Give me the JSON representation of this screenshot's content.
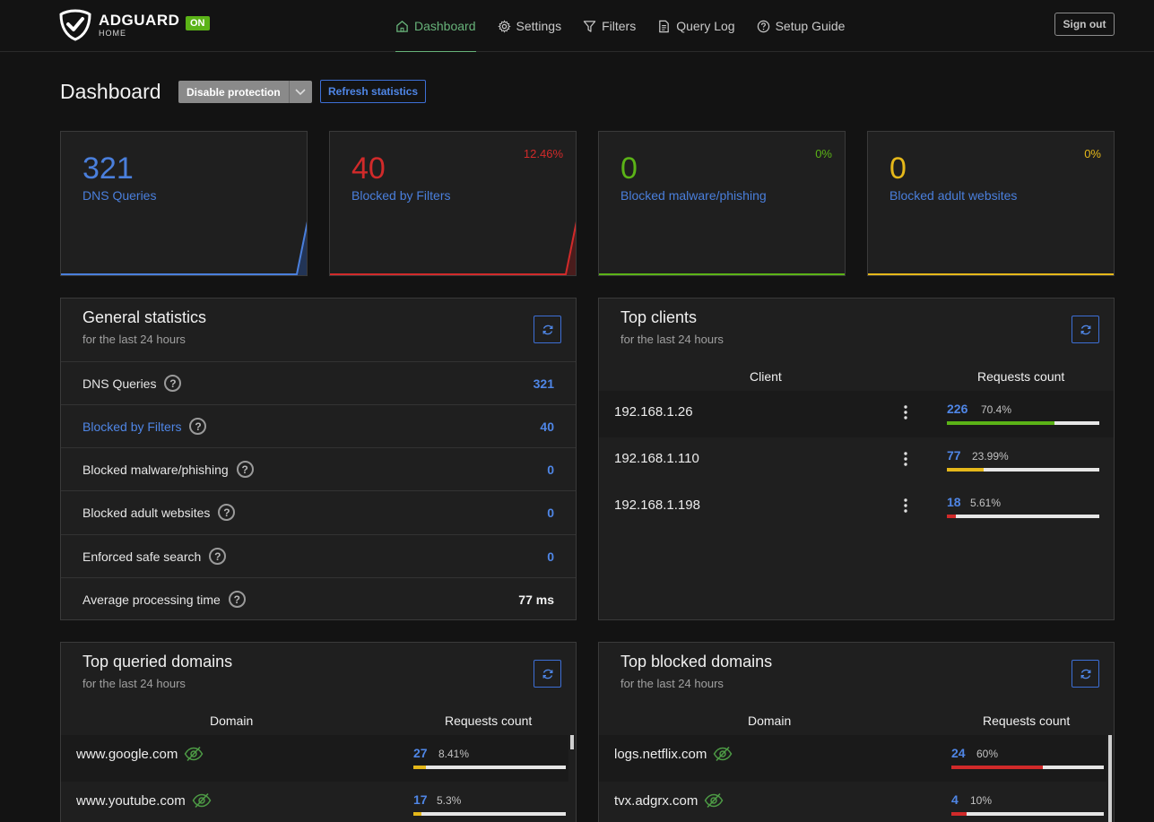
{
  "header": {
    "brand": "ADGUARD",
    "brand_sub": "HOME",
    "status_badge": "ON",
    "nav": [
      {
        "label": "Dashboard",
        "icon": "home-icon",
        "active": true
      },
      {
        "label": "Settings",
        "icon": "gear-icon",
        "active": false
      },
      {
        "label": "Filters",
        "icon": "filter-icon",
        "active": false
      },
      {
        "label": "Query Log",
        "icon": "document-icon",
        "active": false
      },
      {
        "label": "Setup Guide",
        "icon": "help-circle-icon",
        "active": false
      }
    ],
    "signout_label": "Sign out"
  },
  "page": {
    "title": "Dashboard",
    "disable_label": "Disable protection",
    "refresh_label": "Refresh statistics"
  },
  "stat_cards": [
    {
      "value": "321",
      "label": "DNS Queries",
      "percent": "",
      "color": "#4a7fdc"
    },
    {
      "value": "40",
      "label": "Blocked by Filters",
      "percent": "12.46%",
      "color": "#d12a2a"
    },
    {
      "value": "0",
      "label": "Blocked malware/phishing",
      "percent": "0%",
      "color": "#5bb317"
    },
    {
      "value": "0",
      "label": "Blocked adult websites",
      "percent": "0%",
      "color": "#e5b81a"
    }
  ],
  "general_stats": {
    "title": "General statistics",
    "subtitle": "for the last 24 hours",
    "rows": [
      {
        "label": "DNS Queries",
        "value": "321"
      },
      {
        "label": "Blocked by Filters",
        "value": "40"
      },
      {
        "label": "Blocked malware/phishing",
        "value": "0"
      },
      {
        "label": "Blocked adult websites",
        "value": "0"
      },
      {
        "label": "Enforced safe search",
        "value": "0"
      },
      {
        "label": "Average processing time",
        "value": "77 ms"
      }
    ]
  },
  "top_clients": {
    "title": "Top clients",
    "subtitle": "for the last 24 hours",
    "col_client": "Client",
    "col_count": "Requests count",
    "rows": [
      {
        "name": "192.168.1.26",
        "count": "226",
        "percent": "70.4%",
        "fill": 0.704,
        "color": "#5bb317"
      },
      {
        "name": "192.168.1.110",
        "count": "77",
        "percent": "23.99%",
        "fill": 0.2399,
        "color": "#e5b81a"
      },
      {
        "name": "192.168.1.198",
        "count": "18",
        "percent": "5.61%",
        "fill": 0.0561,
        "color": "#d12a2a"
      }
    ]
  },
  "top_queried": {
    "title": "Top queried domains",
    "subtitle": "for the last 24 hours",
    "col_domain": "Domain",
    "col_count": "Requests count",
    "rows": [
      {
        "name": "www.google.com",
        "count": "27",
        "percent": "8.41%",
        "fill": 0.0841,
        "color": "#e5b81a"
      },
      {
        "name": "www.youtube.com",
        "count": "17",
        "percent": "5.3%",
        "fill": 0.053,
        "color": "#e5b81a"
      }
    ]
  },
  "top_blocked": {
    "title": "Top blocked domains",
    "subtitle": "for the last 24 hours",
    "col_domain": "Domain",
    "col_count": "Requests count",
    "rows": [
      {
        "name": "logs.netflix.com",
        "count": "24",
        "percent": "60%",
        "fill": 0.6,
        "color": "#d12a2a"
      },
      {
        "name": "tvx.adgrx.com",
        "count": "4",
        "percent": "10%",
        "fill": 0.1,
        "color": "#d12a2a"
      }
    ]
  }
}
